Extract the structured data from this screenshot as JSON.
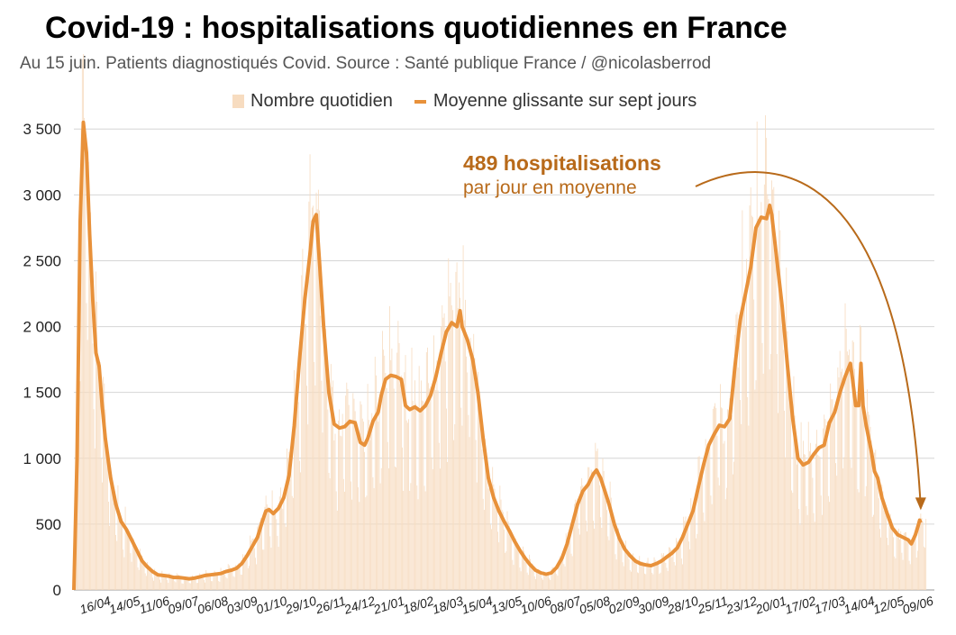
{
  "chart_data": {
    "type": "bar",
    "title": "Covid-19 : hospitalisations quotidiennes en France",
    "subtitle": "Au 15 juin. Patients diagnostiqués Covid. Source : Santé publique France / @nicolasberrod",
    "ylim": [
      0,
      3700
    ],
    "yticks": [
      0,
      500,
      1000,
      1500,
      2000,
      2500,
      3000,
      3500
    ],
    "ytick_labels": [
      "0",
      "500",
      "1 000",
      "1 500",
      "2 000",
      "2 500",
      "3 000",
      "3 500"
    ],
    "x_tick_labels": [
      "16/04",
      "14/05",
      "11/06",
      "09/07",
      "06/08",
      "03/09",
      "01/10",
      "29/10",
      "26/11",
      "24/12",
      "21/01",
      "18/02",
      "18/03",
      "15/04",
      "13/05",
      "10/06",
      "08/07",
      "05/08",
      "02/09",
      "30/09",
      "28/10",
      "25/11",
      "23/12",
      "20/01",
      "17/02",
      "17/03",
      "14/04",
      "12/05",
      "09/06"
    ],
    "x_tick_day_index": [
      29,
      57,
      85,
      113,
      141,
      169,
      197,
      225,
      253,
      281,
      309,
      337,
      365,
      393,
      421,
      449,
      477,
      505,
      533,
      561,
      589,
      617,
      645,
      673,
      701,
      729,
      757,
      785,
      813
    ],
    "n_days": 820,
    "legend": {
      "bars": "Nombre quotidien",
      "line": "Moyenne glissante sur sept jours"
    },
    "series": [
      {
        "name": "Moyenne glissante sur sept jours",
        "type": "line",
        "color": "#e8913a",
        "points": [
          [
            0,
            0
          ],
          [
            3,
            1000
          ],
          [
            6,
            2800
          ],
          [
            9,
            3550
          ],
          [
            12,
            3320
          ],
          [
            15,
            2700
          ],
          [
            18,
            2200
          ],
          [
            21,
            1800
          ],
          [
            24,
            1700
          ],
          [
            27,
            1400
          ],
          [
            30,
            1150
          ],
          [
            35,
            850
          ],
          [
            40,
            650
          ],
          [
            45,
            520
          ],
          [
            50,
            460
          ],
          [
            55,
            380
          ],
          [
            60,
            300
          ],
          [
            65,
            220
          ],
          [
            70,
            175
          ],
          [
            75,
            140
          ],
          [
            80,
            115
          ],
          [
            85,
            110
          ],
          [
            90,
            105
          ],
          [
            95,
            95
          ],
          [
            100,
            95
          ],
          [
            105,
            90
          ],
          [
            110,
            85
          ],
          [
            115,
            90
          ],
          [
            120,
            100
          ],
          [
            125,
            110
          ],
          [
            130,
            115
          ],
          [
            135,
            120
          ],
          [
            140,
            125
          ],
          [
            145,
            140
          ],
          [
            150,
            150
          ],
          [
            155,
            165
          ],
          [
            160,
            200
          ],
          [
            165,
            260
          ],
          [
            170,
            330
          ],
          [
            175,
            400
          ],
          [
            180,
            530
          ],
          [
            183,
            600
          ],
          [
            186,
            610
          ],
          [
            190,
            580
          ],
          [
            195,
            620
          ],
          [
            200,
            700
          ],
          [
            205,
            870
          ],
          [
            210,
            1250
          ],
          [
            215,
            1750
          ],
          [
            220,
            2200
          ],
          [
            225,
            2550
          ],
          [
            228,
            2800
          ],
          [
            231,
            2850
          ],
          [
            234,
            2500
          ],
          [
            238,
            2000
          ],
          [
            243,
            1500
          ],
          [
            248,
            1260
          ],
          [
            253,
            1230
          ],
          [
            258,
            1240
          ],
          [
            263,
            1280
          ],
          [
            268,
            1270
          ],
          [
            273,
            1120
          ],
          [
            277,
            1100
          ],
          [
            280,
            1150
          ],
          [
            285,
            1280
          ],
          [
            290,
            1350
          ],
          [
            293,
            1480
          ],
          [
            297,
            1600
          ],
          [
            302,
            1630
          ],
          [
            307,
            1620
          ],
          [
            312,
            1600
          ],
          [
            316,
            1400
          ],
          [
            320,
            1370
          ],
          [
            325,
            1390
          ],
          [
            330,
            1360
          ],
          [
            335,
            1400
          ],
          [
            340,
            1480
          ],
          [
            345,
            1620
          ],
          [
            350,
            1800
          ],
          [
            355,
            1960
          ],
          [
            360,
            2030
          ],
          [
            365,
            2000
          ],
          [
            368,
            2120
          ],
          [
            370,
            2000
          ],
          [
            375,
            1900
          ],
          [
            380,
            1750
          ],
          [
            385,
            1500
          ],
          [
            390,
            1150
          ],
          [
            395,
            850
          ],
          [
            400,
            700
          ],
          [
            405,
            600
          ],
          [
            410,
            520
          ],
          [
            415,
            450
          ],
          [
            420,
            370
          ],
          [
            425,
            300
          ],
          [
            430,
            240
          ],
          [
            435,
            190
          ],
          [
            440,
            150
          ],
          [
            445,
            130
          ],
          [
            450,
            120
          ],
          [
            455,
            130
          ],
          [
            460,
            170
          ],
          [
            465,
            240
          ],
          [
            470,
            350
          ],
          [
            475,
            500
          ],
          [
            480,
            650
          ],
          [
            485,
            750
          ],
          [
            490,
            800
          ],
          [
            495,
            880
          ],
          [
            498,
            910
          ],
          [
            502,
            850
          ],
          [
            506,
            750
          ],
          [
            510,
            650
          ],
          [
            515,
            500
          ],
          [
            520,
            390
          ],
          [
            525,
            310
          ],
          [
            530,
            260
          ],
          [
            535,
            220
          ],
          [
            540,
            200
          ],
          [
            545,
            190
          ],
          [
            550,
            185
          ],
          [
            555,
            200
          ],
          [
            560,
            220
          ],
          [
            565,
            250
          ],
          [
            570,
            280
          ],
          [
            575,
            320
          ],
          [
            580,
            400
          ],
          [
            585,
            500
          ],
          [
            590,
            600
          ],
          [
            595,
            780
          ],
          [
            600,
            950
          ],
          [
            605,
            1100
          ],
          [
            610,
            1180
          ],
          [
            615,
            1250
          ],
          [
            620,
            1240
          ],
          [
            625,
            1300
          ],
          [
            630,
            1700
          ],
          [
            635,
            2050
          ],
          [
            640,
            2250
          ],
          [
            645,
            2450
          ],
          [
            650,
            2750
          ],
          [
            655,
            2830
          ],
          [
            660,
            2820
          ],
          [
            663,
            2920
          ],
          [
            665,
            2850
          ],
          [
            670,
            2500
          ],
          [
            675,
            2150
          ],
          [
            680,
            1700
          ],
          [
            685,
            1300
          ],
          [
            690,
            1000
          ],
          [
            695,
            950
          ],
          [
            700,
            970
          ],
          [
            705,
            1030
          ],
          [
            710,
            1080
          ],
          [
            715,
            1100
          ],
          [
            720,
            1270
          ],
          [
            725,
            1350
          ],
          [
            730,
            1500
          ],
          [
            735,
            1620
          ],
          [
            740,
            1720
          ],
          [
            742,
            1600
          ],
          [
            745,
            1400
          ],
          [
            748,
            1400
          ],
          [
            750,
            1720
          ],
          [
            752,
            1400
          ],
          [
            755,
            1250
          ],
          [
            760,
            1050
          ],
          [
            763,
            900
          ],
          [
            766,
            850
          ],
          [
            770,
            700
          ],
          [
            775,
            580
          ],
          [
            780,
            470
          ],
          [
            785,
            420
          ],
          [
            790,
            400
          ],
          [
            795,
            380
          ],
          [
            798,
            350
          ],
          [
            802,
            420
          ],
          [
            805,
            500
          ],
          [
            806,
            530
          ],
          [
            807,
            510
          ]
        ]
      },
      {
        "name": "Nombre quotidien",
        "type": "bar",
        "color": "#f7dcc0",
        "note": "daily values fluctuate around the 7-day mean with weekly seasonality"
      }
    ],
    "annotations": [
      {
        "text_bold": "489 hospitalisations",
        "text": "par jour en moyenne",
        "color": "#b86a1a",
        "arrow_to_day": 807
      }
    ]
  }
}
